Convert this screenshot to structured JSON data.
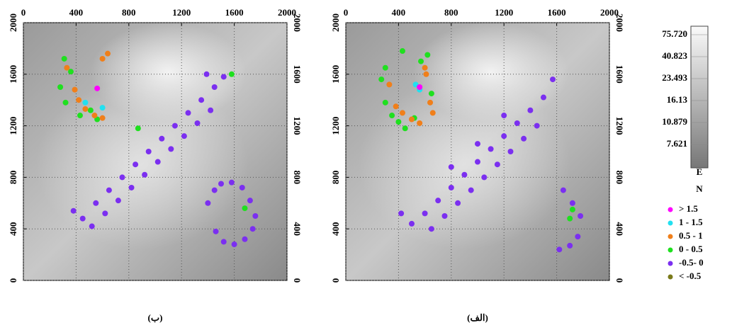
{
  "chart_data": [
    {
      "type": "scatter",
      "caption": "(ب)",
      "xlim": [
        0,
        2000
      ],
      "ylim": [
        0,
        2000
      ],
      "xticks": [
        0,
        400,
        800,
        1200,
        1600,
        2000
      ],
      "yticks": [
        0,
        400,
        800,
        1200,
        1600,
        2000
      ],
      "grid": true,
      "series": [
        {
          "color": "#ff00ff",
          "x": [
            560
          ],
          "y": [
            1490
          ]
        },
        {
          "color": "#22e0f0",
          "x": [
            600,
            470
          ],
          "y": [
            1340,
            1380
          ]
        },
        {
          "color": "#f07f1a",
          "x": [
            330,
            390,
            420,
            470,
            540,
            600,
            640,
            600
          ],
          "y": [
            1650,
            1480,
            1400,
            1330,
            1280,
            1260,
            1760,
            1720
          ]
        },
        {
          "color": "#1fe01f",
          "x": [
            310,
            360,
            280,
            320,
            430,
            510,
            560,
            1580,
            1680,
            870
          ],
          "y": [
            1720,
            1620,
            1500,
            1380,
            1280,
            1320,
            1250,
            1600,
            560,
            1180
          ]
        },
        {
          "color": "#7b2ff0",
          "x": [
            380,
            450,
            550,
            650,
            750,
            850,
            950,
            1050,
            1150,
            1250,
            1350,
            1450,
            1520,
            520,
            620,
            720,
            820,
            920,
            1020,
            1120,
            1220,
            1320,
            1420,
            1390,
            1400,
            1450,
            1500,
            1580,
            1660,
            1720,
            1760,
            1740,
            1680,
            1600,
            1520,
            1460
          ],
          "y": [
            540,
            480,
            600,
            700,
            800,
            900,
            1000,
            1100,
            1200,
            1300,
            1400,
            1500,
            1580,
            420,
            520,
            620,
            720,
            820,
            920,
            1020,
            1120,
            1220,
            1320,
            1600,
            600,
            700,
            750,
            760,
            720,
            620,
            500,
            400,
            320,
            280,
            300,
            380
          ]
        },
        {
          "color": "#7a7a1a",
          "x": [],
          "y": []
        }
      ]
    },
    {
      "type": "scatter",
      "caption": "(الف)",
      "xlim": [
        0,
        2000
      ],
      "ylim": [
        0,
        2000
      ],
      "xticks": [
        0,
        400,
        800,
        1200,
        1600,
        2000
      ],
      "yticks": [
        0,
        400,
        800,
        1200,
        1600,
        2000
      ],
      "grid": true,
      "series": [
        {
          "name": "> 1.5",
          "color": "#ff00ff",
          "x": [
            560
          ],
          "y": [
            1500
          ]
        },
        {
          "name": "1 - 1.5",
          "color": "#22e0f0",
          "x": [
            530,
            560
          ],
          "y": [
            1520,
            1480
          ]
        },
        {
          "name": "0.5 - 1",
          "color": "#f07f1a",
          "x": [
            330,
            380,
            430,
            500,
            560,
            610,
            660,
            600,
            640
          ],
          "y": [
            1520,
            1350,
            1300,
            1250,
            1220,
            1600,
            1300,
            1650,
            1380
          ]
        },
        {
          "name": "0 - 0.5",
          "color": "#1fe01f",
          "x": [
            270,
            300,
            350,
            400,
            450,
            520,
            570,
            620,
            650,
            300,
            430,
            1720,
            1700
          ],
          "y": [
            1560,
            1380,
            1280,
            1230,
            1180,
            1260,
            1700,
            1750,
            1450,
            1650,
            1780,
            550,
            480
          ]
        },
        {
          "name": "-0.5- 0",
          "color": "#7b2ff0",
          "x": [
            420,
            500,
            600,
            700,
            800,
            900,
            1000,
            1100,
            1200,
            1300,
            1400,
            1500,
            1570,
            650,
            750,
            850,
            950,
            1050,
            1150,
            1250,
            1350,
            1450,
            800,
            1000,
            1200,
            1650,
            1720,
            1780,
            1760,
            1700,
            1620
          ],
          "y": [
            520,
            440,
            520,
            620,
            720,
            820,
            920,
            1020,
            1120,
            1220,
            1320,
            1420,
            1560,
            400,
            500,
            600,
            700,
            800,
            900,
            1000,
            1100,
            1200,
            880,
            1060,
            1280,
            700,
            600,
            500,
            340,
            270,
            240
          ]
        },
        {
          "name": "< -0.5",
          "color": "#7a7a1a",
          "x": [],
          "y": []
        }
      ]
    }
  ],
  "colorbar": {
    "ticks": [
      {
        "value": 75.72,
        "label": "75.720"
      },
      40.823,
      23.493,
      16.13,
      10.879,
      7.621
    ],
    "tick_labels_fix": null,
    "east_label": "E",
    "north_label": "N"
  }
}
